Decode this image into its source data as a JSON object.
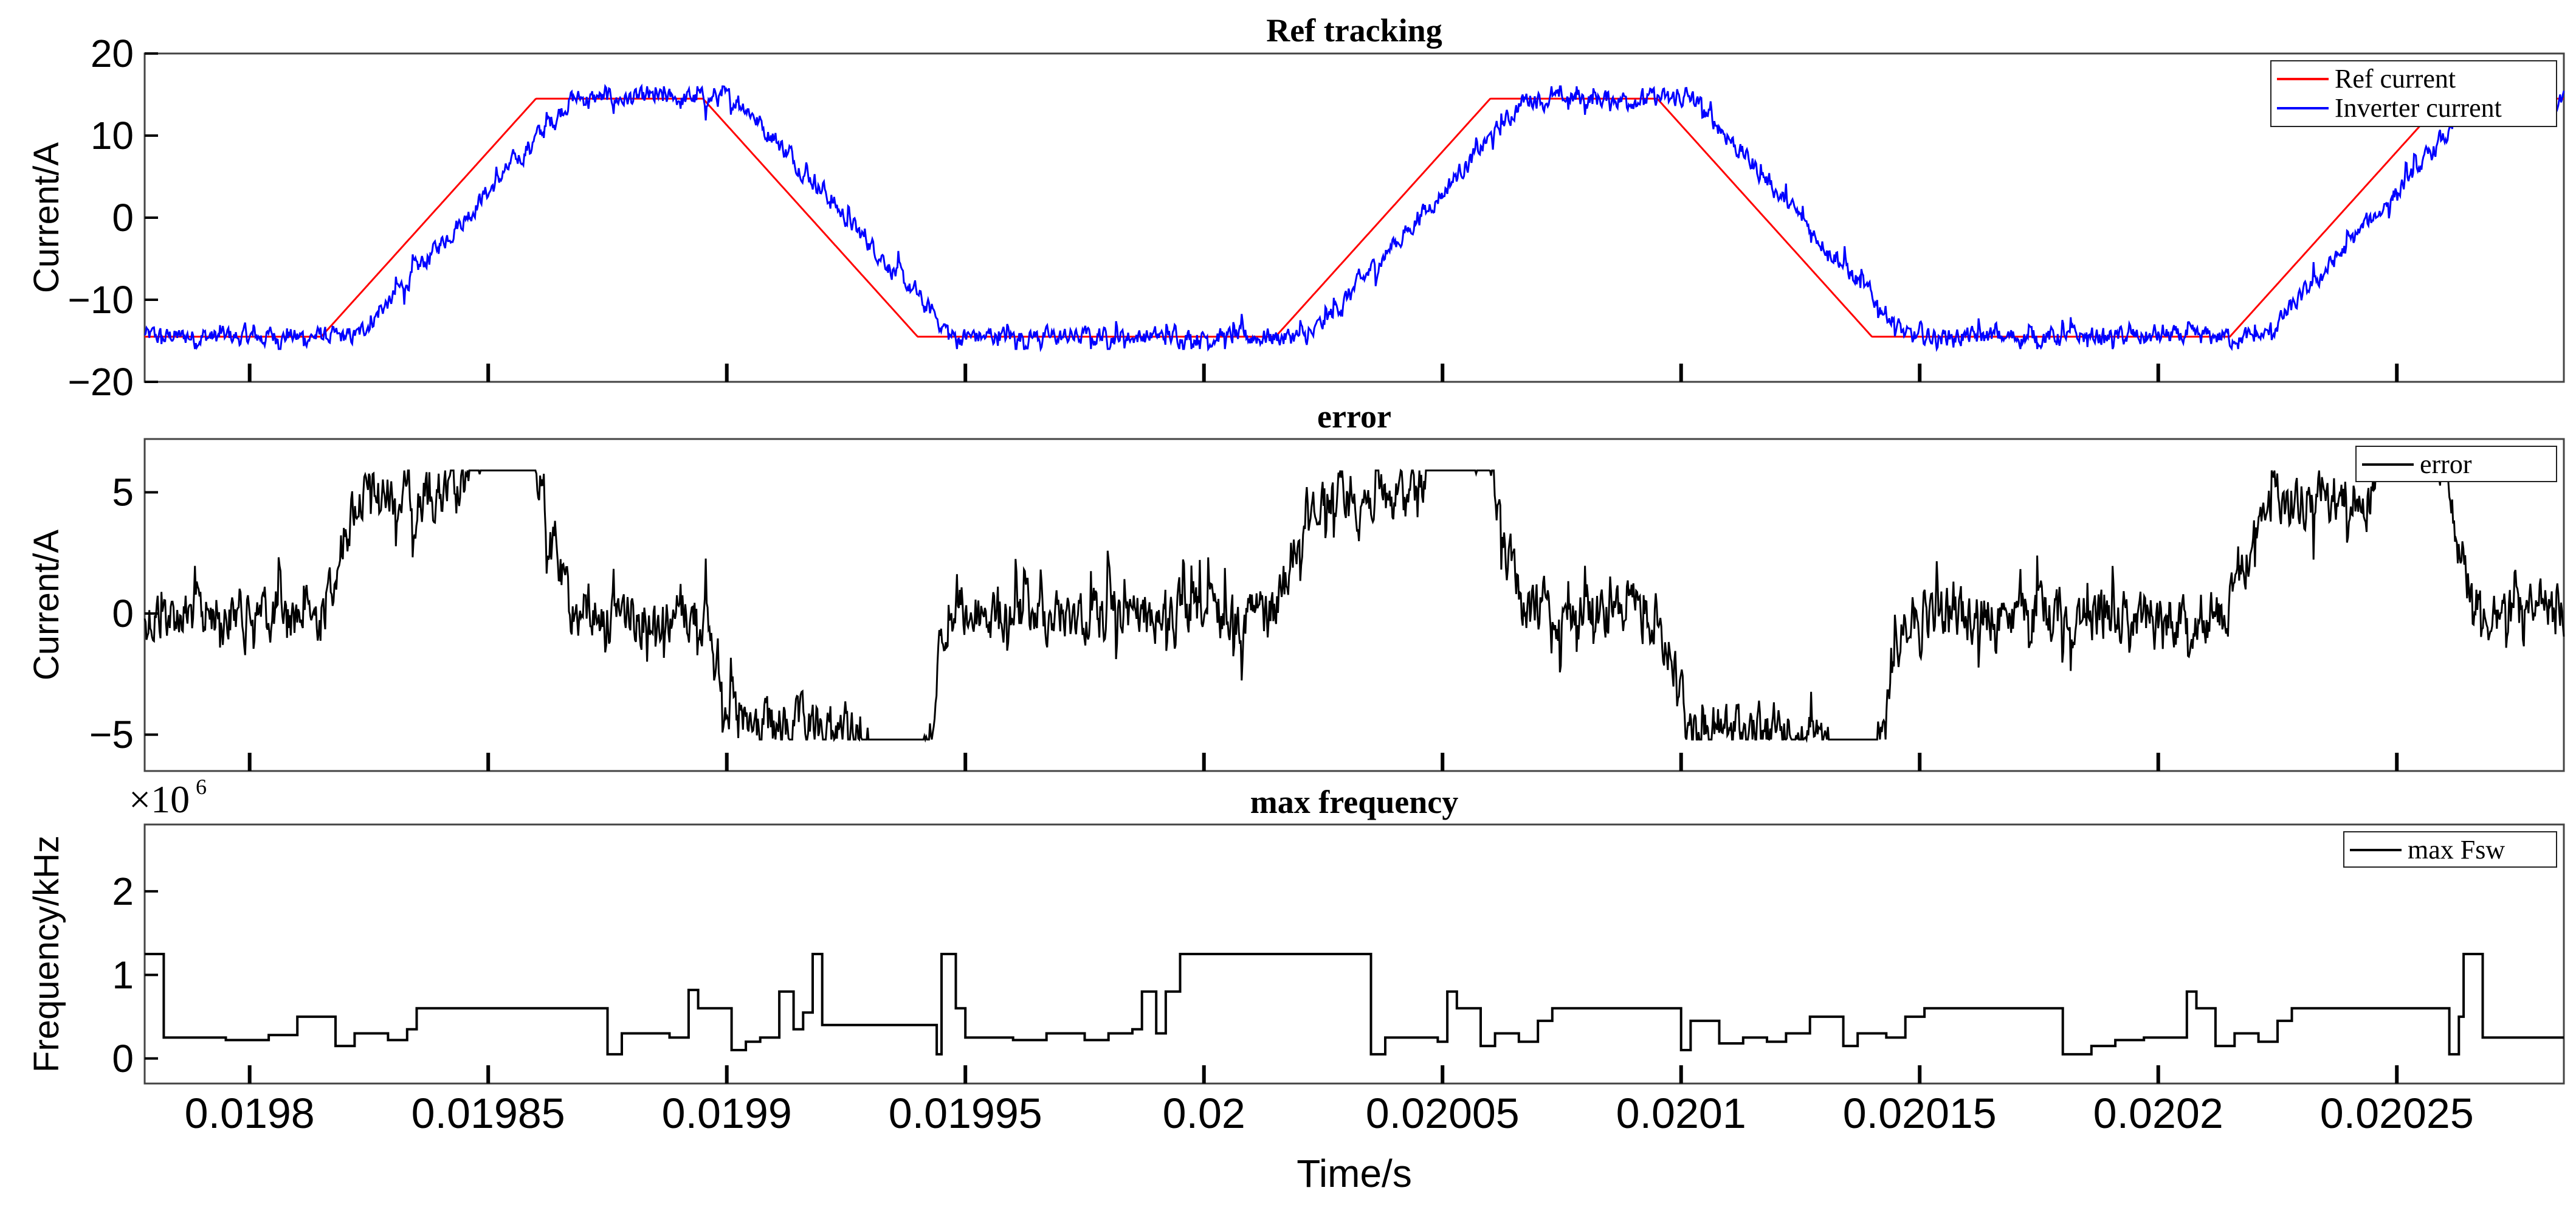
{
  "chart_data": [
    {
      "type": "line",
      "title": "Ref tracking",
      "ylabel": "Current/A",
      "ylim": [
        -20,
        20
      ],
      "yticks": [
        -20,
        -10,
        0,
        10,
        20
      ],
      "ytick_labels": [
        "−20",
        "−10",
        "0",
        "10",
        "20"
      ],
      "xlim": [
        0.019778,
        0.020285
      ],
      "legend_position": "top-right",
      "series": [
        {
          "name": "Ref current",
          "color": "#ff0000",
          "style": "trapezoid",
          "period": 0.0002,
          "rise_start": 0.019815,
          "rise_end": 0.01986,
          "fall_start": 0.019895,
          "fall_end": 0.01994,
          "high": 14.5,
          "low": -14.5
        },
        {
          "name": "Inverter current",
          "color": "#0000ff",
          "style": "ripple",
          "ripple_amplitude_A": 1.5,
          "lag_s": 2.5e-06
        }
      ]
    },
    {
      "type": "line",
      "title": "error",
      "ylabel": "Current/A",
      "ylim": [
        -6.5,
        7.2
      ],
      "yticks": [
        -5,
        0,
        5
      ],
      "ytick_labels": [
        "−5",
        "0",
        "5"
      ],
      "xlim": [
        0.019778,
        0.020285
      ],
      "legend_position": "top-right",
      "series": [
        {
          "name": "error",
          "color": "#000000",
          "peak_A": 5.8,
          "trough_A": -5.0
        }
      ]
    },
    {
      "type": "line",
      "step": true,
      "title": "max frequency",
      "ylabel": "Frequency/kHz",
      "exponent_label": "×10",
      "exponent_power": "6",
      "ylim": [
        -0.3,
        2.8
      ],
      "yticks": [
        0,
        1,
        2
      ],
      "ytick_labels": [
        "0",
        "1",
        "2"
      ],
      "xlabel": "Time/s",
      "xlim": [
        0.019778,
        0.020285
      ],
      "xticks": [
        0.0198,
        0.01985,
        0.0199,
        0.01995,
        0.02,
        0.02005,
        0.0201,
        0.02015,
        0.0202,
        0.02025
      ],
      "xtick_labels": [
        "0.0198",
        "0.01985",
        "0.0199",
        "0.01995",
        "0.02",
        "0.02005",
        "0.0201",
        "0.02015",
        "0.0202",
        "0.02025"
      ],
      "legend_position": "top-right",
      "series": [
        {
          "name": "max Fsw",
          "color": "#000000",
          "steps": [
            [
              0.019778,
              1.25
            ],
            [
              0.019782,
              0.25
            ],
            [
              0.019795,
              0.22
            ],
            [
              0.019804,
              0.28
            ],
            [
              0.01981,
              0.5
            ],
            [
              0.019818,
              0.15
            ],
            [
              0.019822,
              0.3
            ],
            [
              0.019829,
              0.22
            ],
            [
              0.019833,
              0.35
            ],
            [
              0.019835,
              0.6
            ],
            [
              0.019855,
              0.6
            ],
            [
              0.019863,
              0.6
            ],
            [
              0.019875,
              0.05
            ],
            [
              0.019878,
              0.3
            ],
            [
              0.019888,
              0.25
            ],
            [
              0.019892,
              0.82
            ],
            [
              0.019894,
              0.6
            ],
            [
              0.019901,
              0.1
            ],
            [
              0.019904,
              0.2
            ],
            [
              0.019907,
              0.25
            ],
            [
              0.019911,
              0.8
            ],
            [
              0.019914,
              0.35
            ],
            [
              0.019916,
              0.55
            ],
            [
              0.019918,
              1.25
            ],
            [
              0.01992,
              0.4
            ],
            [
              0.019944,
              0.05
            ],
            [
              0.019945,
              1.25
            ],
            [
              0.019948,
              0.6
            ],
            [
              0.01995,
              0.25
            ],
            [
              0.01996,
              0.22
            ],
            [
              0.019967,
              0.3
            ],
            [
              0.019975,
              0.22
            ],
            [
              0.01998,
              0.3
            ],
            [
              0.019985,
              0.35
            ],
            [
              0.019987,
              0.8
            ],
            [
              0.01999,
              0.3
            ],
            [
              0.019992,
              0.8
            ],
            [
              0.019995,
              1.25
            ],
            [
              0.020035,
              0.05
            ],
            [
              0.020038,
              0.25
            ],
            [
              0.020049,
              0.2
            ],
            [
              0.020051,
              0.8
            ],
            [
              0.020053,
              0.6
            ],
            [
              0.020058,
              0.15
            ],
            [
              0.020061,
              0.3
            ],
            [
              0.020066,
              0.2
            ],
            [
              0.02007,
              0.45
            ],
            [
              0.020073,
              0.6
            ],
            [
              0.020094,
              0.6
            ],
            [
              0.0201,
              0.1
            ],
            [
              0.020102,
              0.45
            ],
            [
              0.020108,
              0.18
            ],
            [
              0.020113,
              0.25
            ],
            [
              0.020118,
              0.2
            ],
            [
              0.020122,
              0.3
            ],
            [
              0.020127,
              0.5
            ],
            [
              0.020134,
              0.15
            ],
            [
              0.020137,
              0.3
            ],
            [
              0.020143,
              0.25
            ],
            [
              0.020147,
              0.5
            ],
            [
              0.020151,
              0.6
            ],
            [
              0.020175,
              0.6
            ],
            [
              0.02018,
              0.05
            ],
            [
              0.020186,
              0.15
            ],
            [
              0.020191,
              0.22
            ],
            [
              0.020197,
              0.25
            ],
            [
              0.020206,
              0.8
            ],
            [
              0.020208,
              0.6
            ],
            [
              0.020212,
              0.15
            ],
            [
              0.020216,
              0.3
            ],
            [
              0.020221,
              0.2
            ],
            [
              0.020225,
              0.45
            ],
            [
              0.020228,
              0.6
            ],
            [
              0.020261,
              0.05
            ],
            [
              0.020263,
              0.5
            ],
            [
              0.020264,
              1.25
            ],
            [
              0.020268,
              0.25
            ],
            [
              0.020285,
              0.25
            ]
          ]
        }
      ]
    }
  ]
}
